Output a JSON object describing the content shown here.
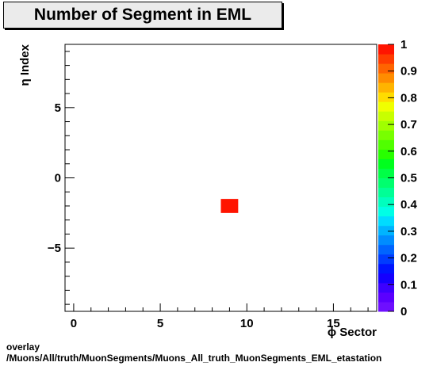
{
  "chart_data": {
    "type": "heatmap",
    "title": "Number of Segment in EML",
    "xlabel": "ϕ Sector",
    "ylabel": "η Index",
    "xlim": [
      -0.5,
      17.5
    ],
    "ylim": [
      -9.5,
      9.5
    ],
    "x_major_ticks": [
      0,
      5,
      10,
      15
    ],
    "x_minor_step": 1,
    "y_major_ticks": [
      -5,
      0,
      5
    ],
    "y_minor_step": 1,
    "cells": [
      {
        "x": 9,
        "y": -2,
        "z": 1
      }
    ],
    "zlim": [
      0,
      1
    ],
    "colorbar_ticks": [
      "0",
      "0.1",
      "0.2",
      "0.3",
      "0.4",
      "0.5",
      "0.6",
      "0.7",
      "0.8",
      "0.9",
      "1"
    ],
    "palette": [
      "#6e0fff",
      "#5a00ff",
      "#3c00ff",
      "#1400ff",
      "#0014ff",
      "#003cff",
      "#0064ff",
      "#008cff",
      "#00b4ff",
      "#00dcff",
      "#00ffe6",
      "#00ffbe",
      "#00ff96",
      "#00ff6e",
      "#00ff46",
      "#00ff1e",
      "#28ff00",
      "#50ff00",
      "#78ff00",
      "#a0ff00",
      "#c8ff00",
      "#f0ff00",
      "#ffdc00",
      "#ffb400",
      "#ff8c00",
      "#ff6400",
      "#ff3c00",
      "#ff1400"
    ]
  },
  "footer": {
    "line1": "overlay",
    "line2": "/Muons/All/truth/MuonSegments/Muons_All_truth_MuonSegments_EML_etastation"
  }
}
